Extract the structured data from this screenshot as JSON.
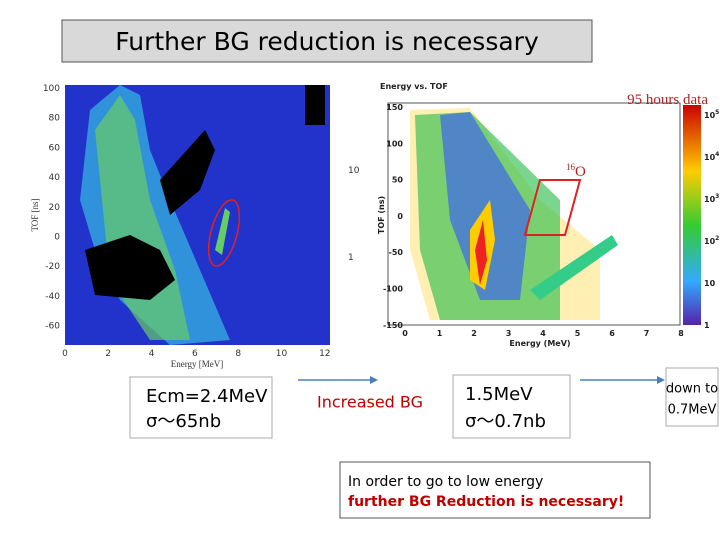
{
  "title": "Further BG reduction is necessary",
  "left_plot": {
    "y_label": "TOF [ns]",
    "x_label": "Energy [MeV]",
    "y_ticks": [
      "100",
      "80",
      "60",
      "40",
      "20",
      "0",
      "-20",
      "-40",
      "-60"
    ],
    "x_ticks": [
      "0",
      "2",
      "4",
      "6",
      "8",
      "10",
      "12"
    ],
    "colorbar_ticks": [
      "10",
      "1"
    ]
  },
  "right_plot": {
    "title": "Energy vs. TOF",
    "y_label": "TOF (ns)",
    "x_label": "Energy (MeV)",
    "y_ticks": [
      "150",
      "100",
      "50",
      "0",
      "-50",
      "-100",
      "-150"
    ],
    "x_ticks": [
      "0",
      "1",
      "2",
      "3",
      "4",
      "5",
      "6",
      "7",
      "8"
    ],
    "colorbar_ticks": [
      {
        "base": "10",
        "exp": "5"
      },
      {
        "base": "10",
        "exp": "4"
      },
      {
        "base": "10",
        "exp": "3"
      },
      {
        "base": "10",
        "exp": "2"
      },
      {
        "base": "10"
      },
      {
        "base": "1"
      }
    ]
  },
  "annotation": "95 hours data",
  "isotope": {
    "mass": "16",
    "element": "O"
  },
  "left_box": {
    "line1": "Ecm=2.4MeV",
    "line2": "σ～65nb"
  },
  "middle_label": "Increased BG",
  "right_box": {
    "line1": "1.5MeV",
    "line2": "σ～0.7nb"
  },
  "side_box": {
    "line1": "down to",
    "line2": "0.7MeV"
  },
  "bottom_box": {
    "line1": "In order to go to low energy",
    "line2": "further BG Reduction is necessary!"
  }
}
